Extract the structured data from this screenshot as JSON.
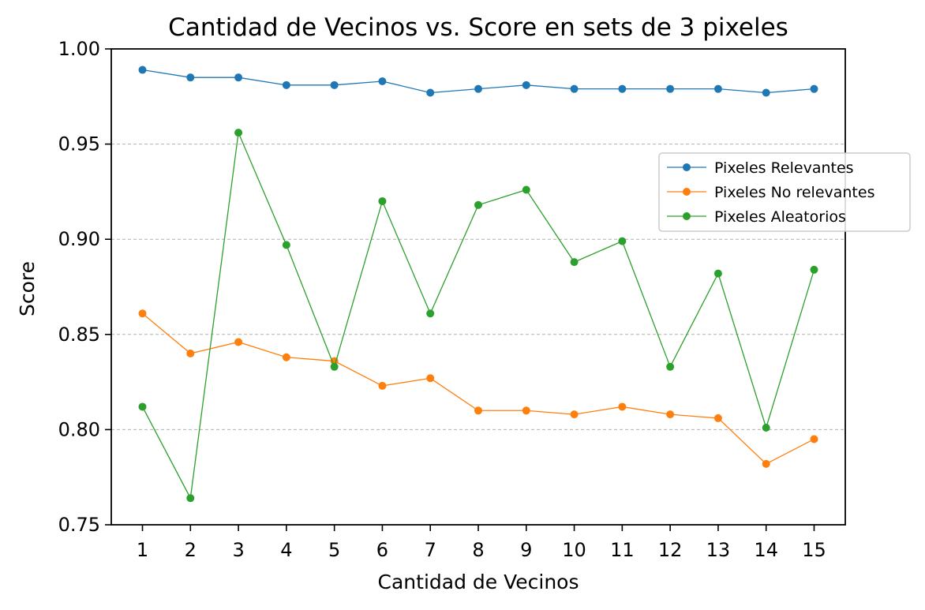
{
  "chart_data": {
    "type": "line",
    "title": "Cantidad de Vecinos vs. Score en sets de 3 pixeles",
    "xlabel": "Cantidad de Vecinos",
    "ylabel": "Score",
    "x": [
      1,
      2,
      3,
      4,
      5,
      6,
      7,
      8,
      9,
      10,
      11,
      12,
      13,
      14,
      15
    ],
    "x_tick_labels": [
      "1",
      "2",
      "3",
      "4",
      "5",
      "6",
      "7",
      "8",
      "9",
      "10",
      "11",
      "12",
      "13",
      "14",
      "15"
    ],
    "y_tick_labels": [
      "0.75",
      "0.80",
      "0.85",
      "0.90",
      "0.95",
      "1.00"
    ],
    "y_ticks": [
      0.75,
      0.8,
      0.85,
      0.9,
      0.95,
      1.0
    ],
    "xlim": [
      0.35,
      15.65
    ],
    "ylim": [
      0.75,
      1.0
    ],
    "grid": "horizontal-dashed",
    "legend_position": "right",
    "series": [
      {
        "name": "Pixeles Relevantes",
        "color": "#1f77b4",
        "values": [
          0.989,
          0.985,
          0.985,
          0.981,
          0.981,
          0.983,
          0.977,
          0.979,
          0.981,
          0.979,
          0.979,
          0.979,
          0.979,
          0.977,
          0.979
        ]
      },
      {
        "name": "Pixeles No relevantes",
        "color": "#ff7f0e",
        "values": [
          0.861,
          0.84,
          0.846,
          0.838,
          0.836,
          0.823,
          0.827,
          0.81,
          0.81,
          0.808,
          0.812,
          0.808,
          0.806,
          0.782,
          0.795
        ]
      },
      {
        "name": "Pixeles Aleatorios",
        "color": "#2ca02c",
        "values": [
          0.812,
          0.764,
          0.956,
          0.897,
          0.833,
          0.92,
          0.861,
          0.918,
          0.926,
          0.888,
          0.899,
          0.833,
          0.882,
          0.801,
          0.884
        ]
      }
    ]
  }
}
